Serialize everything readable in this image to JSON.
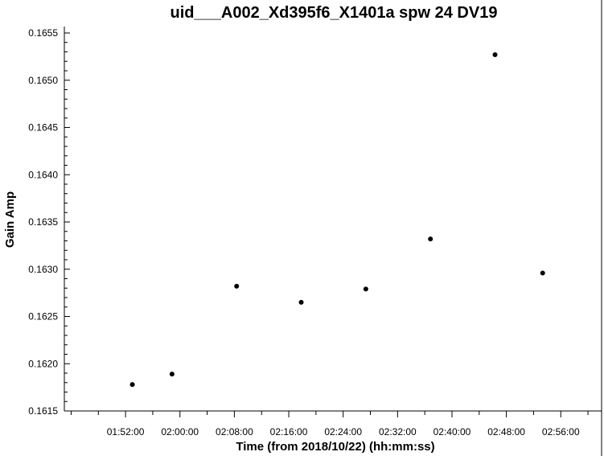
{
  "chart_data": {
    "type": "scatter",
    "title": "uid___A002_Xd395f6_X1401a spw 24 DV19",
    "xlabel": "Time (from 2018/10/22) (hh:mm:ss)",
    "ylabel": "Gain Amp",
    "xlim": [
      "01:43:00",
      "03:02:00"
    ],
    "ylim": [
      0.1615,
      0.1655
    ],
    "x_ticks": [
      "01:52:00",
      "02:00:00",
      "02:08:00",
      "02:16:00",
      "02:24:00",
      "02:32:00",
      "02:40:00",
      "02:48:00",
      "02:56:00"
    ],
    "y_ticks": [
      "0.1615",
      "0.1620",
      "0.1625",
      "0.1630",
      "0.1635",
      "0.1640",
      "0.1645",
      "0.1650",
      "0.1655"
    ],
    "grid": false,
    "color": "#000000",
    "points": [
      {
        "x": "01:53:00",
        "y": 0.16178
      },
      {
        "x": "01:58:50",
        "y": 0.16189
      },
      {
        "x": "02:08:20",
        "y": 0.16282
      },
      {
        "x": "02:17:50",
        "y": 0.16265
      },
      {
        "x": "02:27:20",
        "y": 0.16279
      },
      {
        "x": "02:36:50",
        "y": 0.16332
      },
      {
        "x": "02:46:20",
        "y": 0.16527
      },
      {
        "x": "02:53:20",
        "y": 0.16296
      }
    ]
  }
}
